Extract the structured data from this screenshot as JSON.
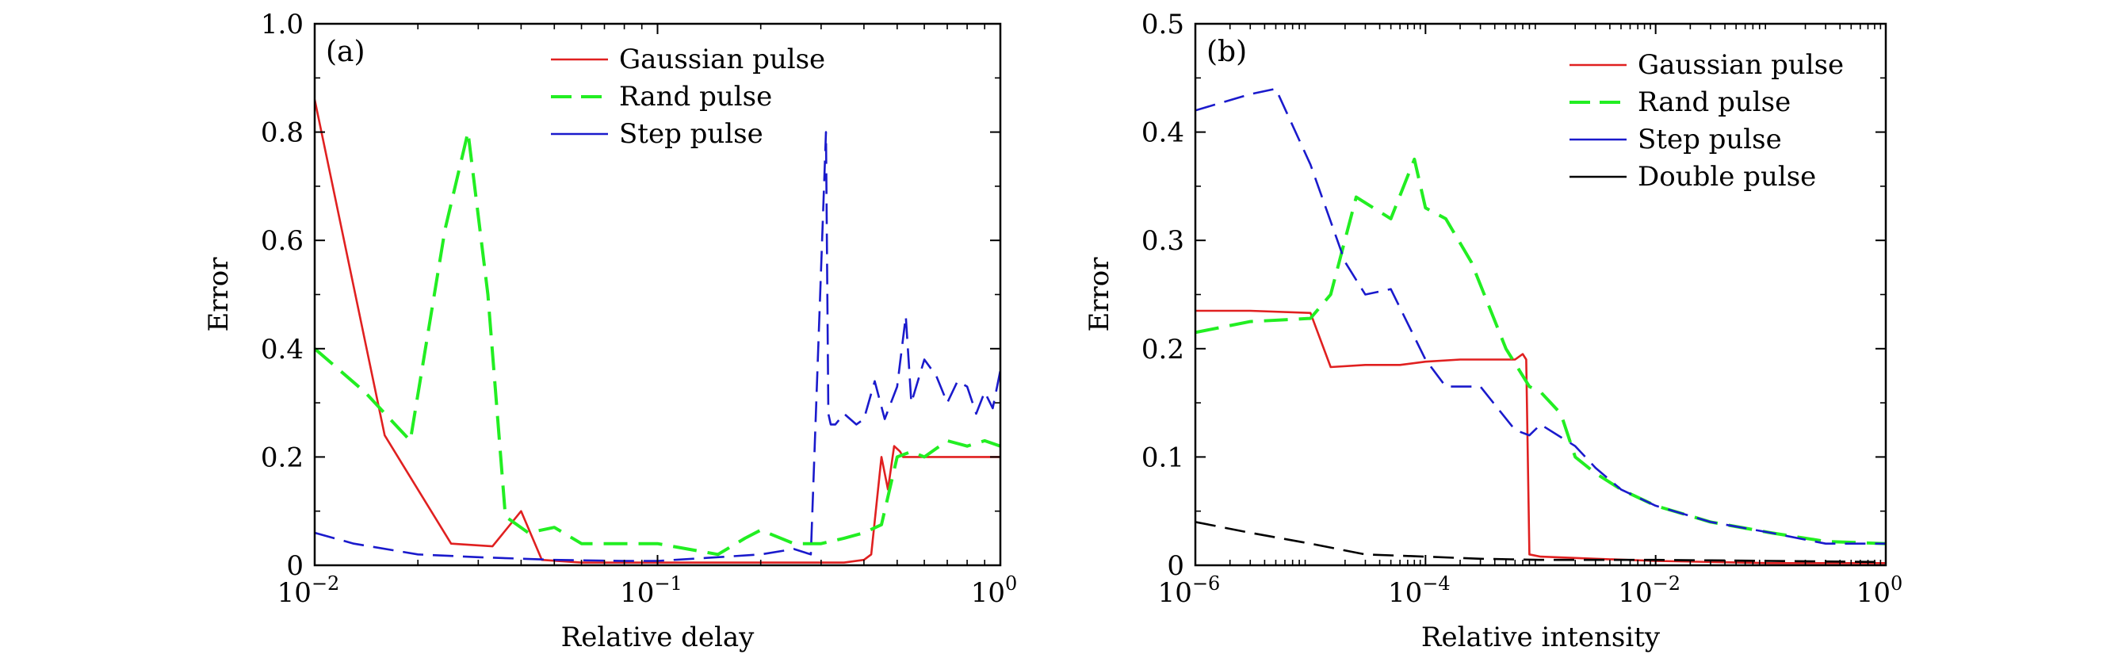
{
  "chart_data": [
    {
      "type": "line",
      "panel_label": "(a)",
      "xlabel": "Relative delay",
      "ylabel": "Error",
      "xscale": "log",
      "xlim": [
        0.01,
        1
      ],
      "ylim": [
        0,
        1.0
      ],
      "xticks": [
        {
          "value": 0.01,
          "base": "10",
          "exp": "−2"
        },
        {
          "value": 0.1,
          "base": "10",
          "exp": "−1"
        },
        {
          "value": 1,
          "base": "10",
          "exp": "0"
        }
      ],
      "yticks": [
        {
          "value": 0,
          "label": "0"
        },
        {
          "value": 0.2,
          "label": "0.2"
        },
        {
          "value": 0.4,
          "label": "0.4"
        },
        {
          "value": 0.6,
          "label": "0.6"
        },
        {
          "value": 0.8,
          "label": "0.8"
        },
        {
          "value": 1.0,
          "label": "1.0"
        }
      ],
      "legend_position": "top-right",
      "series": [
        {
          "name": "Gaussian pulse",
          "color": "#e02020",
          "dash": "solid",
          "width": 2.6,
          "x": [
            0.01,
            0.016,
            0.025,
            0.033,
            0.04,
            0.046,
            0.06,
            0.1,
            0.2,
            0.3,
            0.35,
            0.4,
            0.42,
            0.45,
            0.47,
            0.49,
            0.51,
            0.52,
            0.55,
            0.7,
            1.0
          ],
          "y": [
            0.86,
            0.24,
            0.04,
            0.035,
            0.1,
            0.01,
            0.005,
            0.005,
            0.005,
            0.005,
            0.005,
            0.01,
            0.02,
            0.2,
            0.14,
            0.22,
            0.21,
            0.2,
            0.2,
            0.2,
            0.2
          ]
        },
        {
          "name": "Rand pulse",
          "color": "#22ee22",
          "dash": "long-dash",
          "width": 4,
          "x": [
            0.01,
            0.014,
            0.019,
            0.024,
            0.028,
            0.032,
            0.036,
            0.042,
            0.05,
            0.06,
            0.07,
            0.1,
            0.15,
            0.18,
            0.2,
            0.25,
            0.3,
            0.35,
            0.4,
            0.45,
            0.5,
            0.55,
            0.6,
            0.7,
            0.8,
            0.9,
            1.0
          ],
          "y": [
            0.4,
            0.32,
            0.23,
            0.62,
            0.8,
            0.5,
            0.09,
            0.06,
            0.07,
            0.04,
            0.04,
            0.04,
            0.02,
            0.05,
            0.065,
            0.04,
            0.04,
            0.05,
            0.06,
            0.075,
            0.2,
            0.21,
            0.2,
            0.23,
            0.22,
            0.23,
            0.22
          ]
        },
        {
          "name": "Step pulse",
          "color": "#1a1acc",
          "dash": "dash",
          "width": 2.6,
          "x": [
            0.01,
            0.013,
            0.02,
            0.03,
            0.05,
            0.08,
            0.1,
            0.15,
            0.2,
            0.25,
            0.28,
            0.3,
            0.31,
            0.315,
            0.32,
            0.33,
            0.35,
            0.38,
            0.4,
            0.43,
            0.46,
            0.5,
            0.53,
            0.55,
            0.6,
            0.65,
            0.7,
            0.75,
            0.8,
            0.85,
            0.9,
            0.95,
            1.0
          ],
          "y": [
            0.06,
            0.04,
            0.02,
            0.015,
            0.01,
            0.008,
            0.008,
            0.015,
            0.02,
            0.03,
            0.02,
            0.55,
            0.8,
            0.28,
            0.26,
            0.26,
            0.28,
            0.26,
            0.27,
            0.34,
            0.27,
            0.33,
            0.46,
            0.3,
            0.38,
            0.35,
            0.3,
            0.34,
            0.33,
            0.28,
            0.32,
            0.29,
            0.36
          ]
        }
      ]
    },
    {
      "type": "line",
      "panel_label": "(b)",
      "xlabel": "Relative intensity",
      "ylabel": "Error",
      "xscale": "log",
      "xlim": [
        1e-06,
        1
      ],
      "ylim": [
        0,
        0.5
      ],
      "xticks": [
        {
          "value": 1e-06,
          "base": "10",
          "exp": "−6"
        },
        {
          "value": 0.0001,
          "base": "10",
          "exp": "−4"
        },
        {
          "value": 0.01,
          "base": "10",
          "exp": "−2"
        },
        {
          "value": 1,
          "base": "10",
          "exp": "0"
        }
      ],
      "yticks": [
        {
          "value": 0,
          "label": "0"
        },
        {
          "value": 0.1,
          "label": "0.1"
        },
        {
          "value": 0.2,
          "label": "0.2"
        },
        {
          "value": 0.3,
          "label": "0.3"
        },
        {
          "value": 0.4,
          "label": "0.4"
        },
        {
          "value": 0.5,
          "label": "0.5"
        }
      ],
      "legend_position": "top-right",
      "series": [
        {
          "name": "Gaussian pulse",
          "color": "#e02020",
          "dash": "solid",
          "width": 2.6,
          "x": [
            1e-06,
            3e-06,
            1e-05,
            1.5e-05,
            3e-05,
            6e-05,
            0.0001,
            0.0002,
            0.0004,
            0.0006,
            0.0007,
            0.00075,
            0.0008,
            0.001,
            0.003,
            0.01,
            0.1,
            1
          ],
          "y": [
            0.235,
            0.235,
            0.233,
            0.183,
            0.185,
            0.185,
            0.188,
            0.19,
            0.19,
            0.19,
            0.195,
            0.19,
            0.01,
            0.008,
            0.006,
            0.004,
            0.002,
            0.002
          ]
        },
        {
          "name": "Rand pulse",
          "color": "#22ee22",
          "dash": "long-dash",
          "width": 4,
          "x": [
            1e-06,
            3e-06,
            1e-05,
            1.5e-05,
            2.5e-05,
            5e-05,
            8e-05,
            0.0001,
            0.00015,
            0.00025,
            0.0005,
            0.0008,
            0.001,
            0.0015,
            0.002,
            0.003,
            0.005,
            0.01,
            0.03,
            0.1,
            0.3,
            1
          ],
          "y": [
            0.215,
            0.225,
            0.228,
            0.25,
            0.34,
            0.32,
            0.375,
            0.33,
            0.32,
            0.28,
            0.2,
            0.165,
            0.16,
            0.14,
            0.1,
            0.085,
            0.07,
            0.055,
            0.04,
            0.03,
            0.022,
            0.02
          ]
        },
        {
          "name": "Step pulse",
          "color": "#1a1acc",
          "dash": "dash",
          "width": 2.6,
          "x": [
            1e-06,
            3e-06,
            5e-06,
            1e-05,
            2e-05,
            3e-05,
            5e-05,
            0.0001,
            0.00015,
            0.0003,
            0.0006,
            0.0008,
            0.001,
            0.002,
            0.003,
            0.005,
            0.01,
            0.03,
            0.1,
            0.3,
            1
          ],
          "y": [
            0.42,
            0.435,
            0.44,
            0.37,
            0.28,
            0.25,
            0.255,
            0.19,
            0.165,
            0.165,
            0.125,
            0.12,
            0.13,
            0.11,
            0.09,
            0.07,
            0.055,
            0.04,
            0.03,
            0.02,
            0.02
          ]
        },
        {
          "name": "Double pulse",
          "color": "#000000",
          "dash": "dash",
          "width": 2.6,
          "x": [
            1e-06,
            3e-06,
            1e-05,
            3e-05,
            0.0001,
            0.0003,
            0.001,
            0.01,
            0.1,
            1
          ],
          "y": [
            0.04,
            0.03,
            0.02,
            0.01,
            0.008,
            0.006,
            0.005,
            0.005,
            0.004,
            0.003
          ]
        }
      ]
    }
  ]
}
